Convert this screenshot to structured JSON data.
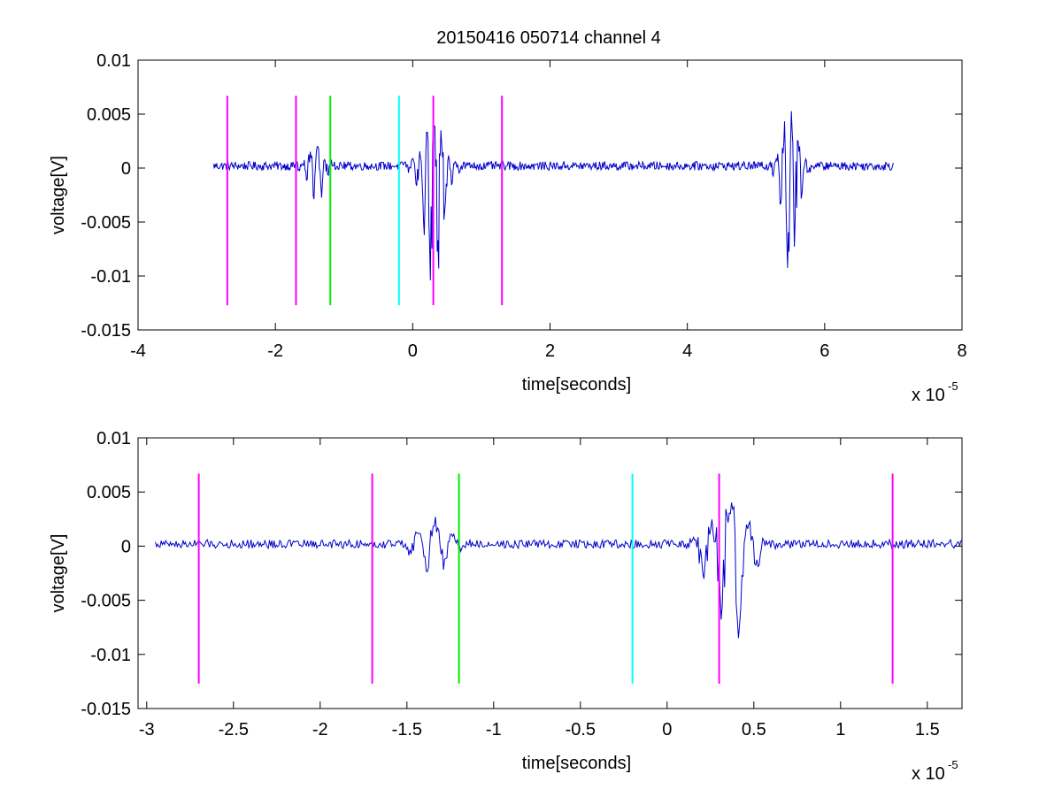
{
  "title": "20150416 050714 channel 4",
  "chart_data": [
    {
      "type": "line",
      "title": "20150416 050714 channel 4",
      "xlabel": "time[seconds]",
      "ylabel": "voltage[V]",
      "x_exponent": "x 10",
      "x_exponent_power": "-5",
      "xlim": [
        -4,
        8
      ],
      "ylim": [
        -0.015,
        0.01
      ],
      "xticks": [
        -4,
        -2,
        0,
        2,
        4,
        6,
        8
      ],
      "xtick_labels": [
        "-4",
        "-2",
        "0",
        "2",
        "4",
        "6",
        "8"
      ],
      "yticks": [
        0.01,
        0.005,
        0,
        -0.005,
        -0.01,
        -0.015
      ],
      "ytick_labels": [
        "0.01",
        "0.005",
        "0",
        "-0.005",
        "-0.01",
        "-0.015"
      ],
      "grid": false,
      "series": [
        {
          "color": "#0000cc",
          "x_range": [
            -2.9,
            7.0
          ],
          "baseline": 0.0002,
          "noise_amplitude": 0.0004,
          "bursts": [
            {
              "x": -1.4,
              "peak_pos": 0.0025,
              "peak_neg": -0.0037,
              "width": 0.35
            },
            {
              "x": 0.3,
              "peak_pos": 0.0045,
              "peak_neg": -0.0115,
              "width": 0.45
            },
            {
              "x": 5.5,
              "peak_pos": 0.006,
              "peak_neg": -0.011,
              "width": 0.35
            }
          ]
        }
      ],
      "markers": [
        {
          "x": -2.7,
          "color": "#ff00ff",
          "y_range": [
            -0.0127,
            0.0067
          ]
        },
        {
          "x": -1.7,
          "color": "#ff00ff",
          "y_range": [
            -0.0127,
            0.0067
          ]
        },
        {
          "x": -1.2,
          "color": "#00ee00",
          "y_range": [
            -0.0127,
            0.0067
          ]
        },
        {
          "x": -0.2,
          "color": "#00ffff",
          "y_range": [
            -0.0127,
            0.0067
          ]
        },
        {
          "x": 0.3,
          "color": "#ff00ff",
          "y_range": [
            -0.0127,
            0.0067
          ]
        },
        {
          "x": 1.3,
          "color": "#ff00ff",
          "y_range": [
            -0.0127,
            0.0067
          ]
        }
      ]
    },
    {
      "type": "line",
      "xlabel": "time[seconds]",
      "ylabel": "voltage[V]",
      "x_exponent": "x 10",
      "x_exponent_power": "-5",
      "xlim": [
        -3.05,
        1.7
      ],
      "ylim": [
        -0.015,
        0.01
      ],
      "xticks": [
        -3,
        -2.5,
        -2,
        -1.5,
        -1,
        -0.5,
        0,
        0.5,
        1,
        1.5
      ],
      "xtick_labels": [
        "-3",
        "-2.5",
        "-2",
        "-1.5",
        "-1",
        "-0.5",
        "0",
        "0.5",
        "1",
        "1.5"
      ],
      "yticks": [
        0.01,
        0.005,
        0,
        -0.005,
        -0.01,
        -0.015
      ],
      "ytick_labels": [
        "0.01",
        "0.005",
        "0",
        "-0.005",
        "-0.01",
        "-0.015"
      ],
      "grid": false,
      "series": [
        {
          "color": "#0000cc",
          "x_range": [
            -2.95,
            1.7
          ],
          "baseline": 0.0002,
          "noise_amplitude": 0.0004,
          "bursts": [
            {
              "x": -1.35,
              "peak_pos": 0.0025,
              "peak_neg": -0.0037,
              "width": 0.25
            },
            {
              "x": 0.35,
              "peak_pos": 0.0045,
              "peak_neg": -0.0115,
              "width": 0.3
            }
          ]
        }
      ],
      "markers": [
        {
          "x": -2.7,
          "color": "#ff00ff",
          "y_range": [
            -0.0127,
            0.0067
          ]
        },
        {
          "x": -1.7,
          "color": "#ff00ff",
          "y_range": [
            -0.0127,
            0.0067
          ]
        },
        {
          "x": -1.2,
          "color": "#00ee00",
          "y_range": [
            -0.0127,
            0.0067
          ]
        },
        {
          "x": -0.2,
          "color": "#00ffff",
          "y_range": [
            -0.0127,
            0.0067
          ]
        },
        {
          "x": 0.3,
          "color": "#ff00ff",
          "y_range": [
            -0.0127,
            0.0067
          ]
        },
        {
          "x": 1.3,
          "color": "#ff00ff",
          "y_range": [
            -0.0127,
            0.0067
          ]
        }
      ]
    }
  ]
}
